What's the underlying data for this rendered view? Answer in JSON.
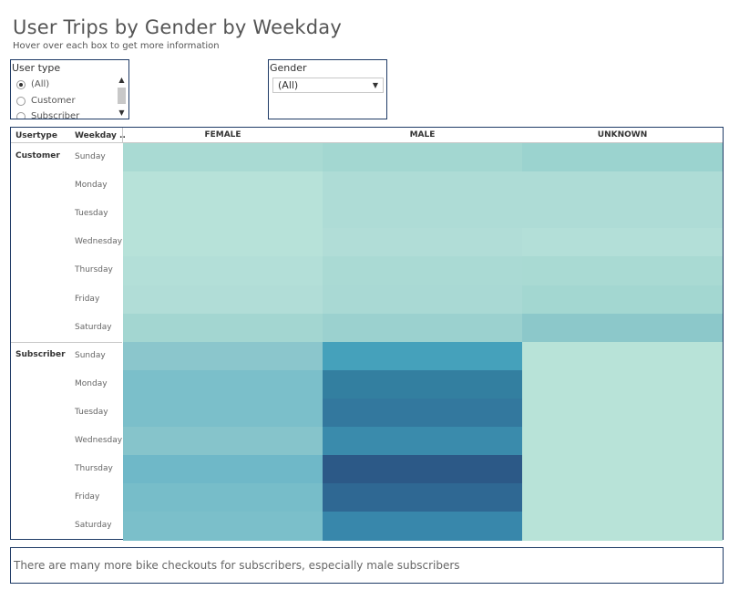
{
  "header": {
    "title": "User Trips by Gender by Weekday",
    "subtitle": "Hover over each box to get more information"
  },
  "filters": {
    "usertype": {
      "label": "User type",
      "options": [
        {
          "label": "(All)",
          "checked": true
        },
        {
          "label": "Customer",
          "checked": false
        },
        {
          "label": "Subscriber",
          "checked": false
        }
      ]
    },
    "gender": {
      "label": "Gender",
      "selected": "(All)"
    }
  },
  "chart_data": {
    "type": "heatmap",
    "row_headers": [
      "Usertype",
      "Weekday .."
    ],
    "columns": [
      "FEMALE",
      "MALE",
      "UNKNOWN"
    ],
    "groups": [
      {
        "usertype": "Customer",
        "weekdays": [
          "Sunday",
          "Monday",
          "Tuesday",
          "Wednesday",
          "Thursday",
          "Friday",
          "Saturday"
        ],
        "colors": [
          [
            "#a9dad3",
            "#a3d7d1",
            "#9bd3cf"
          ],
          [
            "#b7e2d9",
            "#aedcd6",
            "#aedcd6"
          ],
          [
            "#b7e2d9",
            "#aedcd6",
            "#aedcd6"
          ],
          [
            "#b7e2d9",
            "#b1ddd7",
            "#b3dfd8"
          ],
          [
            "#b3dfd8",
            "#aadad4",
            "#a9dad3"
          ],
          [
            "#b1ddd7",
            "#a9d9d4",
            "#a3d7d1"
          ],
          [
            "#a3d6d1",
            "#9bd1cf",
            "#8cc8ca"
          ]
        ]
      },
      {
        "usertype": "Subscriber",
        "weekdays": [
          "Sunday",
          "Monday",
          "Tuesday",
          "Wednesday",
          "Thursday",
          "Friday",
          "Saturday"
        ],
        "colors": [
          [
            "#8bc6cc",
            "#45a1bb",
            "#b8e3d8"
          ],
          [
            "#7bbfca",
            "#337fa0",
            "#b8e3d8"
          ],
          [
            "#7bbfca",
            "#33789e",
            "#b8e3d8"
          ],
          [
            "#86c4cb",
            "#3a8bac",
            "#b8e3d8"
          ],
          [
            "#6fb8c8",
            "#2c5987",
            "#b8e3d8"
          ],
          [
            "#77bdc9",
            "#2f6893",
            "#b8e3d8"
          ],
          [
            "#7bbfca",
            "#3887ab",
            "#b8e3d8"
          ]
        ]
      }
    ]
  },
  "note": "There are many more bike checkouts for subscribers, especially male subscribers"
}
